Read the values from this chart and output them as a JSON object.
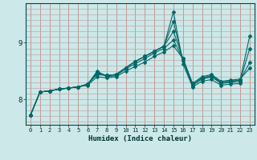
{
  "xlabel": "Humidex (Indice chaleur)",
  "bg_color": "#cce8e8",
  "grid_color_v": "#c08080",
  "grid_color_h": "#c0b0b0",
  "line_color": "#006868",
  "xlim": [
    -0.5,
    23.5
  ],
  "ylim": [
    7.55,
    9.7
  ],
  "yticks": [
    8,
    9
  ],
  "xticks": [
    0,
    1,
    2,
    3,
    4,
    5,
    6,
    7,
    8,
    9,
    10,
    11,
    12,
    13,
    14,
    15,
    16,
    17,
    18,
    19,
    20,
    21,
    22,
    23
  ],
  "hgrid_vals": [
    7.6,
    7.7,
    7.8,
    7.9,
    8.0,
    8.1,
    8.2,
    8.3,
    8.4,
    8.5,
    8.6,
    8.7,
    8.8,
    8.9,
    9.0,
    9.1,
    9.2,
    9.3,
    9.4,
    9.5,
    9.6,
    9.7
  ],
  "lines": [
    {
      "x": [
        0,
        1,
        2,
        3,
        4,
        5,
        6,
        7,
        8,
        9,
        10,
        11,
        12,
        13,
        14,
        15,
        16,
        17,
        18,
        19,
        20,
        21,
        22
      ],
      "y": [
        7.72,
        8.13,
        8.15,
        8.18,
        8.2,
        8.22,
        8.27,
        8.44,
        8.42,
        8.44,
        8.56,
        8.67,
        8.76,
        8.85,
        8.94,
        9.55,
        8.63,
        8.22,
        8.32,
        8.35,
        8.25,
        8.27,
        8.28
      ]
    },
    {
      "x": [
        0,
        1,
        2,
        3,
        4,
        5,
        6,
        7,
        8,
        9,
        10,
        11,
        12,
        13,
        14,
        15,
        16,
        17,
        18,
        19,
        20,
        21,
        22,
        23
      ],
      "y": [
        7.72,
        8.13,
        8.15,
        8.18,
        8.2,
        8.22,
        8.27,
        8.46,
        8.42,
        8.44,
        8.56,
        8.67,
        8.76,
        8.85,
        8.94,
        9.38,
        8.68,
        8.25,
        8.36,
        8.4,
        8.28,
        8.3,
        8.32,
        8.9
      ]
    },
    {
      "x": [
        0,
        1,
        2,
        3,
        4,
        5,
        6,
        7,
        8,
        9,
        10,
        11,
        12,
        13,
        14,
        15,
        16,
        17,
        18,
        19,
        20,
        21,
        22,
        23
      ],
      "y": [
        7.72,
        8.13,
        8.15,
        8.18,
        8.2,
        8.22,
        8.27,
        8.48,
        8.42,
        8.44,
        8.56,
        8.67,
        8.76,
        8.85,
        8.94,
        9.2,
        8.72,
        8.28,
        8.38,
        8.42,
        8.3,
        8.32,
        8.34,
        8.65
      ]
    },
    {
      "x": [
        0,
        1,
        2,
        3,
        4,
        5,
        6,
        7,
        8,
        9,
        10,
        11,
        12,
        13,
        14,
        15,
        16,
        17,
        18,
        19,
        20,
        21,
        22,
        23
      ],
      "y": [
        7.72,
        8.13,
        8.15,
        8.18,
        8.2,
        8.22,
        8.26,
        8.5,
        8.4,
        8.42,
        8.54,
        8.63,
        8.72,
        8.82,
        8.9,
        9.05,
        8.72,
        8.28,
        8.4,
        8.44,
        8.32,
        8.34,
        8.36,
        8.55
      ]
    },
    {
      "x": [
        0,
        1,
        2,
        3,
        4,
        5,
        6,
        7,
        8,
        9,
        10,
        11,
        12,
        13,
        14,
        15,
        16,
        17,
        18,
        19,
        20,
        21,
        22,
        23
      ],
      "y": [
        7.72,
        8.13,
        8.15,
        8.18,
        8.2,
        8.22,
        8.25,
        8.4,
        8.38,
        8.4,
        8.5,
        8.58,
        8.66,
        8.76,
        8.84,
        8.95,
        8.72,
        8.25,
        8.36,
        8.4,
        8.3,
        8.32,
        8.34,
        9.12
      ]
    }
  ]
}
